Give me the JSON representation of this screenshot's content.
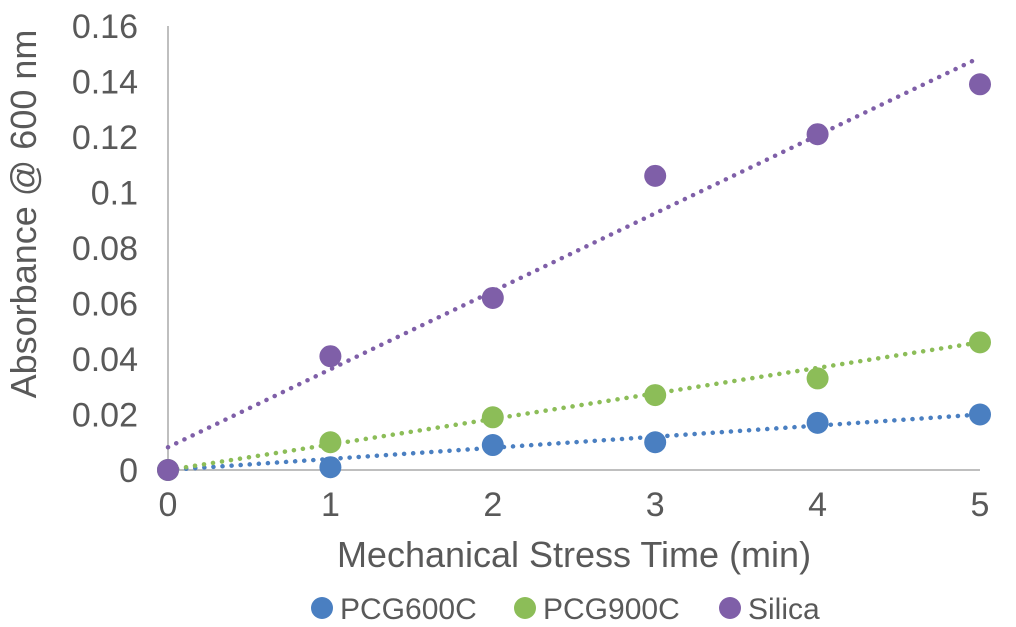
{
  "chart_data": {
    "type": "scatter",
    "xlabel": "Mechanical Stress Time (min)",
    "ylabel": "Absorbance @ 600 nm",
    "xlim": [
      0,
      5
    ],
    "ylim": [
      0,
      0.16
    ],
    "x_ticks": [
      "0",
      "1",
      "2",
      "3",
      "4",
      "5"
    ],
    "y_ticks": [
      "0",
      "0.02",
      "0.04",
      "0.06",
      "0.08",
      "0.1",
      "0.12",
      "0.14",
      "0.16"
    ],
    "x": [
      0,
      1,
      2,
      3,
      4,
      5
    ],
    "grid": false,
    "legend_position": "bottom",
    "trendlines": "linear, dotted",
    "series": [
      {
        "name": "PCG600C",
        "color": "#4a7fc1",
        "values": [
          0,
          0.001,
          0.009,
          0.01,
          0.017,
          0.02
        ],
        "trend": [
          0,
          0.004
        ]
      },
      {
        "name": "PCG900C",
        "color": "#8cbd58",
        "values": [
          0,
          0.01,
          0.019,
          0.027,
          0.033,
          0.046
        ],
        "trend": [
          0,
          0.0092
        ]
      },
      {
        "name": "Silica",
        "color": "#7f5fa8",
        "values": [
          0,
          0.041,
          0.062,
          0.106,
          0.121,
          0.139
        ],
        "trend": [
          0.0082,
          0.0281
        ]
      }
    ]
  }
}
